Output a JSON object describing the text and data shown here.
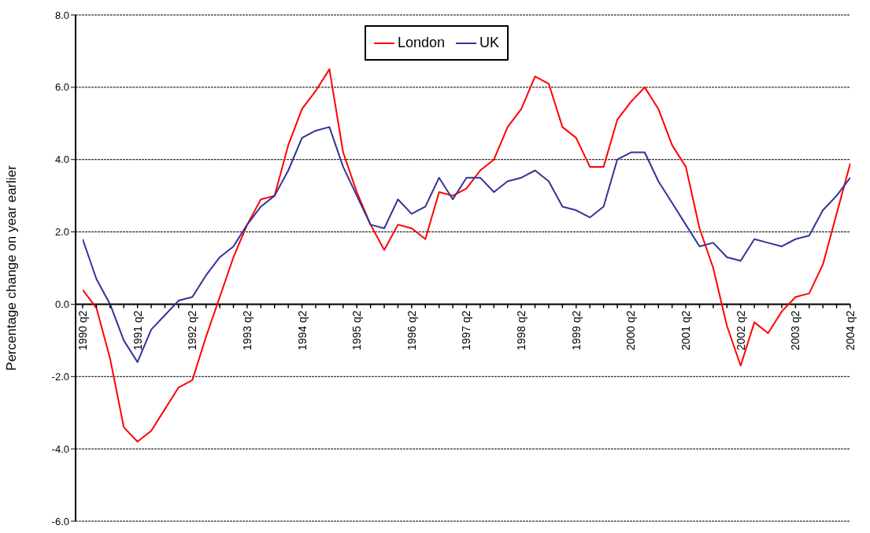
{
  "chart_data": {
    "type": "line",
    "ylabel": "Percentage change on year earlier",
    "categories": [
      "1990 q2",
      null,
      null,
      null,
      "1991 q2",
      null,
      null,
      null,
      "1992 q2",
      null,
      null,
      null,
      "1993 q2",
      null,
      null,
      null,
      "1994 q2",
      null,
      null,
      null,
      "1995 q2",
      null,
      null,
      null,
      "1996 q2",
      null,
      null,
      null,
      "1997 q2",
      null,
      null,
      null,
      "1998 q2",
      null,
      null,
      null,
      "1999 q2",
      null,
      null,
      null,
      "2000 q2",
      null,
      null,
      null,
      "2001 q2",
      null,
      null,
      null,
      "2002 q2",
      null,
      null,
      null,
      "2003 q2",
      null,
      null,
      null,
      "2004 q2"
    ],
    "series": [
      {
        "name": "London",
        "color": "#ff0000",
        "values": [
          0.4,
          -0.1,
          -1.5,
          -3.4,
          -3.8,
          -3.5,
          -2.9,
          -2.3,
          -2.1,
          -0.9,
          0.2,
          1.3,
          2.2,
          2.9,
          3.0,
          4.4,
          5.4,
          5.9,
          6.5,
          4.2,
          3.1,
          2.2,
          1.5,
          2.2,
          2.1,
          1.8,
          3.1,
          3.0,
          3.2,
          3.7,
          4.0,
          4.9,
          5.4,
          6.3,
          6.1,
          4.9,
          4.6,
          3.8,
          3.8,
          5.1,
          5.6,
          6.0,
          5.4,
          4.4,
          3.8,
          2.1,
          1.0,
          -0.6,
          -1.7,
          -0.5,
          -0.8,
          -0.2,
          0.2,
          0.3,
          1.1,
          2.5,
          3.9
        ]
      },
      {
        "name": "UK",
        "color": "#333399",
        "values": [
          1.8,
          0.7,
          0.0,
          -1.0,
          -1.6,
          -0.7,
          -0.3,
          0.1,
          0.2,
          0.8,
          1.3,
          1.6,
          2.2,
          2.7,
          3.0,
          3.7,
          4.6,
          4.8,
          4.9,
          3.8,
          3.0,
          2.2,
          2.1,
          2.9,
          2.5,
          2.7,
          3.5,
          2.9,
          3.5,
          3.5,
          3.1,
          3.4,
          3.5,
          3.7,
          3.4,
          2.7,
          2.6,
          2.4,
          2.7,
          4.0,
          4.2,
          4.2,
          3.4,
          2.8,
          2.2,
          1.6,
          1.7,
          1.3,
          1.2,
          1.8,
          1.7,
          1.6,
          1.8,
          1.9,
          2.6,
          3.0,
          3.5
        ]
      }
    ],
    "ylim": [
      -6,
      8
    ],
    "yticks": [
      {
        "value": -6,
        "label": "-6.0"
      },
      {
        "value": -4,
        "label": "-4.0"
      },
      {
        "value": -2,
        "label": "-2.0"
      },
      {
        "value": 0,
        "label": "0.0"
      },
      {
        "value": 2,
        "label": "2.0"
      },
      {
        "value": 4,
        "label": "4.0"
      },
      {
        "value": 6,
        "label": "6.0"
      },
      {
        "value": 8,
        "label": "8.0"
      }
    ],
    "grid": "y",
    "legend": "top",
    "marker": "none",
    "line_style": "solid"
  }
}
